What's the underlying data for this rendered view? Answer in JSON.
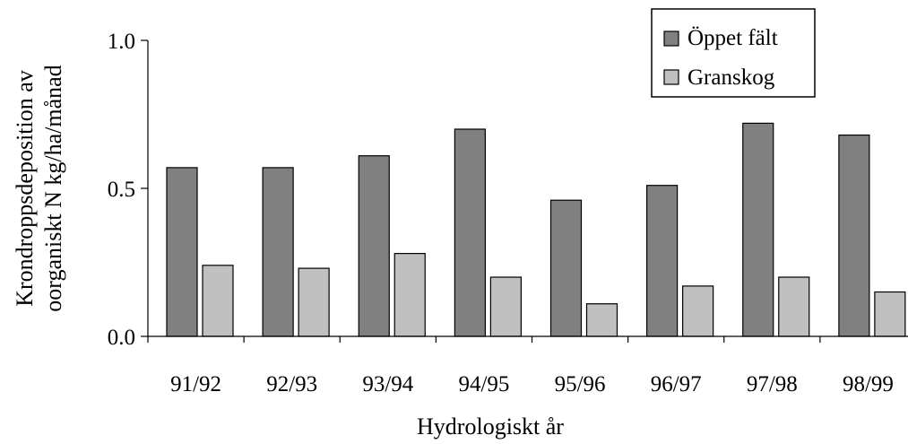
{
  "chart_data": {
    "type": "bar",
    "title": "",
    "xlabel": "Hydrologiskt år",
    "ylabel_lines": [
      "Krondroppsdeposition av",
      "oorganiskt N kg/ha/månad"
    ],
    "categories": [
      "91/92",
      "92/93",
      "93/94",
      "94/95",
      "95/96",
      "96/97",
      "97/98",
      "98/99"
    ],
    "series": [
      {
        "name": "Öppet fält",
        "color": "#808080",
        "values": [
          0.57,
          0.57,
          0.61,
          0.7,
          0.46,
          0.51,
          0.72,
          0.68
        ]
      },
      {
        "name": "Granskog",
        "color": "#c0c0c0",
        "values": [
          0.24,
          0.23,
          0.28,
          0.2,
          0.11,
          0.17,
          0.2,
          0.15
        ]
      }
    ],
    "ylim": [
      0,
      1.0
    ],
    "yticks": [
      0.0,
      0.5,
      1.0
    ],
    "ytick_labels": [
      "0.0",
      "0.5",
      "1.0"
    ],
    "grid": false,
    "legend_position": "top-right"
  }
}
